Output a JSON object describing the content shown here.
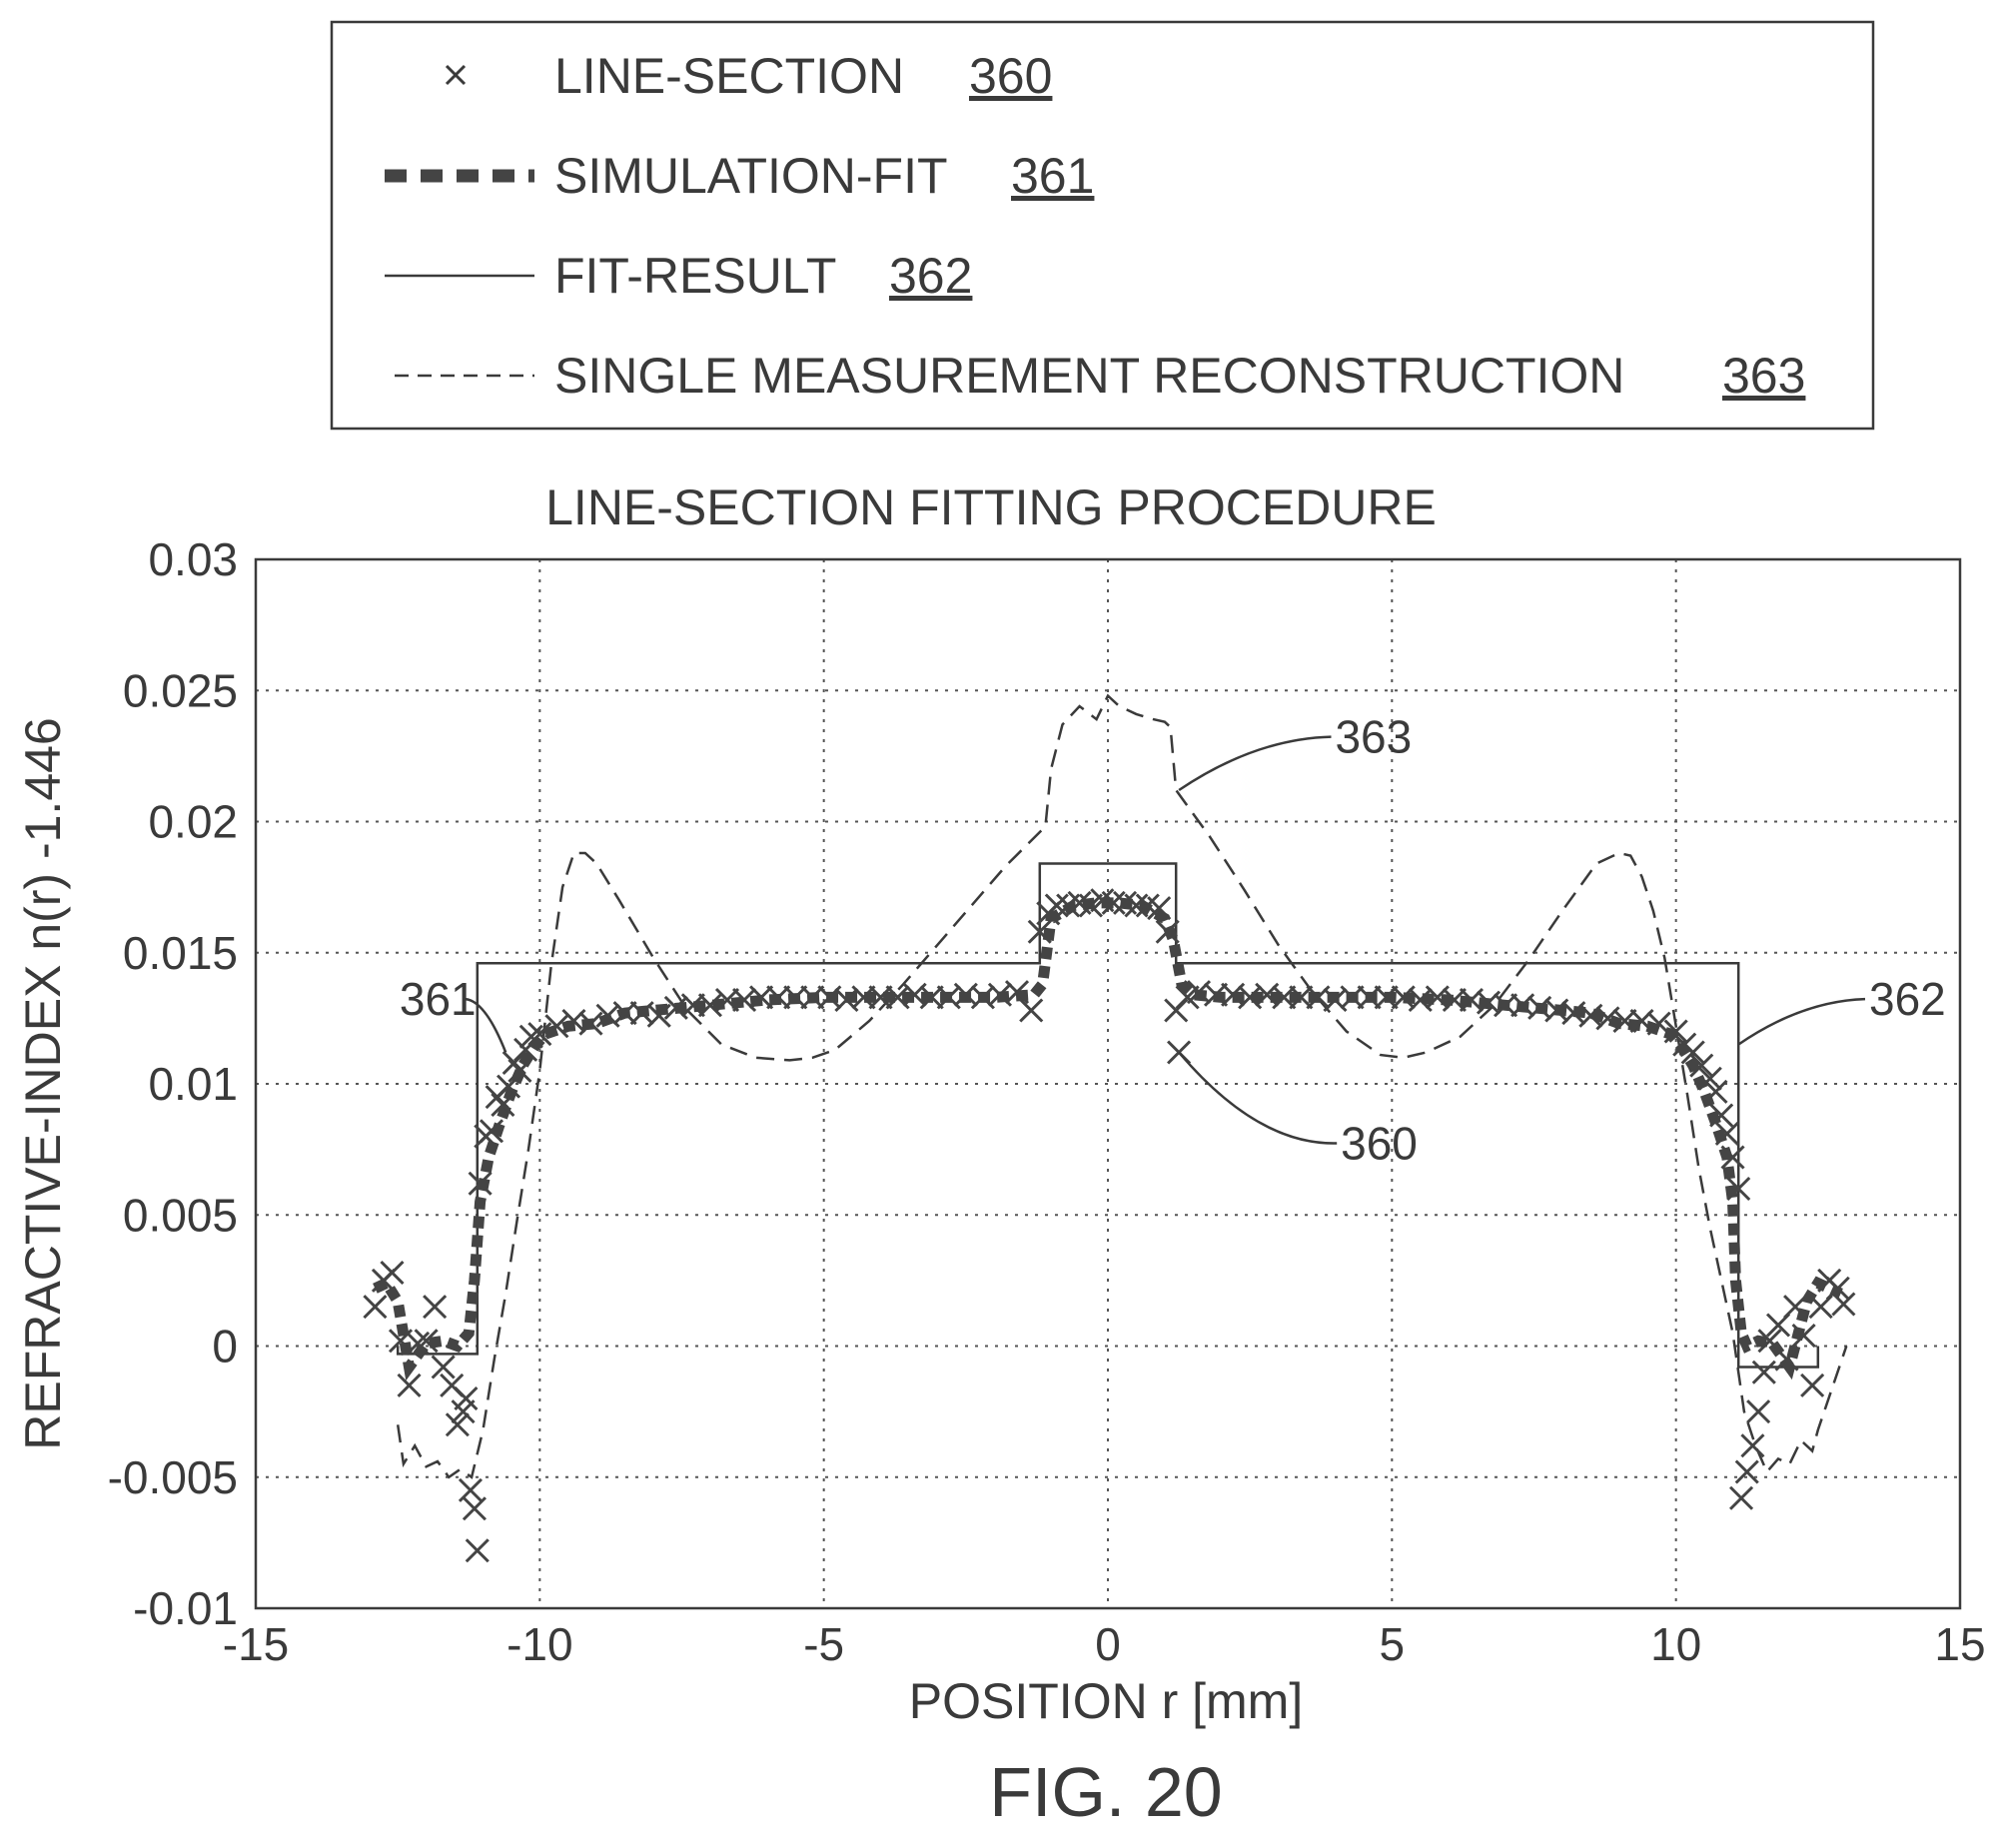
{
  "legend": {
    "items": [
      {
        "key": "line_section",
        "label": "LINE-SECTION",
        "ref": "360",
        "symbol": "x-marker"
      },
      {
        "key": "simulation_fit",
        "label": "SIMULATION-FIT",
        "ref": "361",
        "symbol": "thick-dashed-line"
      },
      {
        "key": "fit_result",
        "label": "FIT-RESULT",
        "ref": "362",
        "symbol": "thin-solid-line"
      },
      {
        "key": "single_reconstruction",
        "label": "SINGLE MEASUREMENT RECONSTRUCTION",
        "ref": "363",
        "symbol": "thin-dashed-line"
      }
    ]
  },
  "figure_caption": "FIG. 20",
  "chart_data": {
    "type": "line",
    "title": "LINE-SECTION FITTING PROCEDURE",
    "xlabel": "POSITION r [mm]",
    "ylabel": "REFRACTIVE-INDEX n(r) -1.446",
    "xlim": [
      -15,
      15
    ],
    "ylim": [
      -0.01,
      0.03
    ],
    "xticks": [
      -15,
      -10,
      -5,
      0,
      5,
      10,
      15
    ],
    "xtick_labels": [
      "-15",
      "-10",
      "-5",
      "0",
      "5",
      "10",
      "15"
    ],
    "yticks": [
      -0.01,
      -0.005,
      0,
      0.005,
      0.01,
      0.015,
      0.02,
      0.025,
      0.03
    ],
    "ytick_labels": [
      "-0.01",
      "-0.005",
      "0",
      "0.005",
      "0.01",
      "0.015",
      "0.02",
      "0.025",
      "0.03"
    ],
    "grid": true,
    "legend_position": "top",
    "colors": {
      "ink": "#3a3a3a",
      "marker": "#444444",
      "grid": "#555555"
    },
    "callouts": [
      {
        "label": "360",
        "at": [
          1.25,
          0.0112
        ],
        "text_at": [
          4.1,
          0.0072
        ]
      },
      {
        "label": "361",
        "at": [
          -10.6,
          0.0112
        ],
        "text_at": [
          -12.4,
          0.0127
        ]
      },
      {
        "label": "362",
        "at": [
          11.1,
          0.0115
        ],
        "text_at": [
          13.4,
          0.0127
        ]
      },
      {
        "label": "363",
        "at": [
          1.25,
          0.0212
        ],
        "text_at": [
          4.0,
          0.0227
        ]
      }
    ],
    "series": [
      {
        "key": "line_section",
        "style": "markers",
        "x": [
          -12.9,
          -12.75,
          -12.6,
          -12.45,
          -12.3,
          -12.15,
          -12.0,
          -11.85,
          -11.7,
          -11.55,
          -11.45,
          -11.35,
          -11.3,
          -11.22,
          -11.15,
          -11.1,
          -11.05,
          -10.95,
          -10.85,
          -10.75,
          -10.65,
          -10.55,
          -10.45,
          -10.35,
          -10.25,
          -10.15,
          -10.0,
          -9.7,
          -9.4,
          -9.1,
          -8.8,
          -8.5,
          -8.2,
          -7.9,
          -7.6,
          -7.3,
          -7.0,
          -6.7,
          -6.4,
          -6.1,
          -5.8,
          -5.5,
          -5.2,
          -4.9,
          -4.6,
          -4.3,
          -4.0,
          -3.7,
          -3.4,
          -3.1,
          -2.8,
          -2.5,
          -2.2,
          -1.9,
          -1.6,
          -1.35,
          -1.2,
          -1.05,
          -0.9,
          -0.7,
          -0.5,
          -0.3,
          -0.1,
          0.1,
          0.3,
          0.5,
          0.7,
          0.9,
          1.05,
          1.2,
          1.25,
          1.4,
          1.6,
          1.9,
          2.2,
          2.5,
          2.8,
          3.1,
          3.4,
          3.7,
          4.0,
          4.3,
          4.6,
          4.9,
          5.2,
          5.5,
          5.8,
          6.1,
          6.4,
          6.7,
          7.0,
          7.3,
          7.6,
          7.9,
          8.2,
          8.5,
          8.8,
          9.1,
          9.4,
          9.7,
          10.0,
          10.15,
          10.3,
          10.45,
          10.6,
          10.7,
          10.8,
          10.9,
          11.0,
          11.1,
          11.15,
          11.25,
          11.35,
          11.45,
          11.55,
          11.65,
          11.8,
          11.95,
          12.1,
          12.25,
          12.4,
          12.55,
          12.7,
          12.85,
          12.95
        ],
        "y": [
          0.0015,
          0.0025,
          0.0028,
          0.0002,
          -0.0015,
          0.0001,
          0.0002,
          0.0015,
          -0.0008,
          -0.0015,
          -0.003,
          -0.0025,
          -0.002,
          -0.0055,
          -0.0062,
          -0.0078,
          0.0062,
          0.008,
          0.0082,
          0.0095,
          0.0092,
          0.0099,
          0.0108,
          0.0105,
          0.0113,
          0.0118,
          0.0119,
          0.0122,
          0.0124,
          0.0123,
          0.0126,
          0.0127,
          0.0127,
          0.0126,
          0.0129,
          0.013,
          0.013,
          0.0132,
          0.0132,
          0.0133,
          0.0133,
          0.0133,
          0.0133,
          0.0133,
          0.0132,
          0.0133,
          0.0133,
          0.0133,
          0.0134,
          0.0133,
          0.0133,
          0.0134,
          0.0133,
          0.0134,
          0.0135,
          0.0128,
          0.0158,
          0.0165,
          0.0168,
          0.0168,
          0.0169,
          0.0168,
          0.017,
          0.0169,
          0.0169,
          0.0168,
          0.0168,
          0.0167,
          0.0158,
          0.0128,
          0.0112,
          0.0133,
          0.0135,
          0.0134,
          0.0134,
          0.0133,
          0.0134,
          0.0133,
          0.0133,
          0.0133,
          0.0132,
          0.0133,
          0.0133,
          0.0133,
          0.0133,
          0.0132,
          0.0133,
          0.0132,
          0.0132,
          0.0131,
          0.013,
          0.013,
          0.0129,
          0.0128,
          0.0127,
          0.0126,
          0.0125,
          0.0124,
          0.0124,
          0.0123,
          0.012,
          0.0115,
          0.0112,
          0.0107,
          0.0102,
          0.0097,
          0.0088,
          0.0081,
          0.0072,
          0.006,
          -0.0058,
          -0.0048,
          -0.0038,
          -0.0025,
          -0.001,
          0.0002,
          0.0008,
          -0.0005,
          0.0015,
          0.0004,
          -0.0015,
          0.0015,
          0.0025,
          0.0022,
          0.0016
        ]
      },
      {
        "key": "simulation_fit",
        "style": "thick-dashed",
        "x": [
          -12.9,
          -12.7,
          -12.5,
          -12.3,
          -12.0,
          -11.7,
          -11.45,
          -11.25,
          -11.15,
          -11.05,
          -10.9,
          -10.7,
          -10.5,
          -10.3,
          -10.1,
          -9.9,
          -9.5,
          -9.0,
          -8.5,
          -8.0,
          -7.0,
          -6.0,
          -5.0,
          -4.0,
          -3.0,
          -2.0,
          -1.3,
          -1.15,
          -1.0,
          -0.6,
          -0.2,
          0.2,
          0.6,
          1.0,
          1.15,
          1.3,
          1.5,
          2.0,
          3.0,
          4.0,
          5.0,
          6.0,
          7.0,
          8.0,
          8.5,
          9.0,
          9.5,
          9.9,
          10.1,
          10.3,
          10.5,
          10.7,
          10.9,
          11.0,
          11.05,
          11.15,
          11.25,
          11.45,
          11.7,
          12.0,
          12.3,
          12.5,
          12.7,
          12.9
        ],
        "y": [
          0.0022,
          0.0024,
          0.0017,
          -0.0008,
          0.0001,
          0.0002,
          0.0,
          0.0005,
          0.0025,
          0.0055,
          0.0072,
          0.0085,
          0.0097,
          0.0107,
          0.0114,
          0.0119,
          0.0122,
          0.0123,
          0.0127,
          0.0128,
          0.013,
          0.0132,
          0.0133,
          0.0133,
          0.0133,
          0.0133,
          0.0134,
          0.0138,
          0.0163,
          0.0168,
          0.0169,
          0.0169,
          0.0168,
          0.0163,
          0.0155,
          0.0138,
          0.0134,
          0.0133,
          0.0133,
          0.0133,
          0.0133,
          0.0132,
          0.013,
          0.0128,
          0.0127,
          0.0123,
          0.0122,
          0.0119,
          0.0114,
          0.0107,
          0.0097,
          0.0085,
          0.0072,
          0.0055,
          0.0025,
          0.0005,
          0.0,
          0.0002,
          0.0001,
          -0.0008,
          0.0017,
          0.0024,
          0.0022,
          0.002
        ]
      },
      {
        "key": "fit_result",
        "style": "thin-solid",
        "x": [
          -12.5,
          -12.5,
          -11.1,
          -11.1,
          -1.2,
          -1.2,
          1.2,
          1.2,
          11.1,
          11.1,
          12.5,
          12.5
        ],
        "y": [
          0.0,
          -0.0003,
          -0.0003,
          0.0146,
          0.0146,
          0.0184,
          0.0184,
          0.0146,
          0.0146,
          -0.0008,
          -0.0008,
          0.0
        ]
      },
      {
        "key": "single_reconstruction",
        "style": "thin-dashed",
        "x": [
          -12.5,
          -12.4,
          -12.2,
          -12.0,
          -11.8,
          -11.6,
          -11.4,
          -11.2,
          -11.0,
          -10.8,
          -10.6,
          -10.4,
          -10.2,
          -10.0,
          -9.8,
          -9.6,
          -9.4,
          -9.2,
          -9.0,
          -8.6,
          -8.0,
          -7.4,
          -6.8,
          -6.2,
          -5.6,
          -5.2,
          -4.8,
          -4.2,
          -3.6,
          -3.0,
          -2.4,
          -1.8,
          -1.2,
          -1.1,
          -1.0,
          -0.8,
          -0.5,
          -0.2,
          0.0,
          0.2,
          0.5,
          0.8,
          1.0,
          1.1,
          1.2,
          1.8,
          2.4,
          3.0,
          3.6,
          4.2,
          4.8,
          5.2,
          5.6,
          6.2,
          6.8,
          7.4,
          8.0,
          8.6,
          9.0,
          9.2,
          9.4,
          9.6,
          9.8,
          10.0,
          10.2,
          10.4,
          10.6,
          10.8,
          11.0,
          11.2,
          11.4,
          11.6,
          11.8,
          12.0,
          12.2,
          12.4,
          12.5,
          13.0
        ],
        "y": [
          -0.003,
          -0.0045,
          -0.0038,
          -0.0046,
          -0.0044,
          -0.005,
          -0.0047,
          -0.005,
          -0.0032,
          -0.0005,
          0.002,
          0.0048,
          0.0075,
          0.0105,
          0.0145,
          0.0175,
          0.0188,
          0.0188,
          0.0184,
          0.017,
          0.0148,
          0.0128,
          0.0115,
          0.011,
          0.0109,
          0.011,
          0.0113,
          0.0124,
          0.0138,
          0.0153,
          0.0168,
          0.0183,
          0.0196,
          0.0198,
          0.022,
          0.0237,
          0.0244,
          0.0239,
          0.0248,
          0.0244,
          0.0241,
          0.0239,
          0.0238,
          0.0236,
          0.0212,
          0.0194,
          0.0174,
          0.0153,
          0.0135,
          0.012,
          0.0111,
          0.011,
          0.0112,
          0.0118,
          0.013,
          0.0147,
          0.0166,
          0.0184,
          0.0188,
          0.0187,
          0.0179,
          0.0166,
          0.0148,
          0.0122,
          0.0096,
          0.0068,
          0.0045,
          0.0025,
          0.0005,
          -0.0025,
          -0.0038,
          -0.0048,
          -0.0043,
          -0.0045,
          -0.0036,
          -0.004,
          -0.0032,
          0.0
        ]
      }
    ]
  }
}
